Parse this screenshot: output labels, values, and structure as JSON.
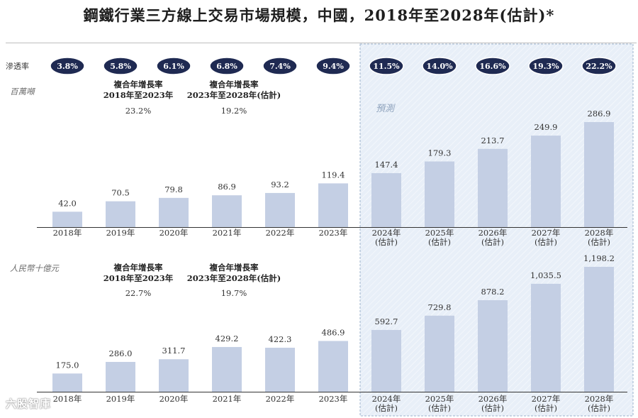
{
  "title": "鋼鐵行業三方線上交易市場規模，中國，2018年至2028年(估計)*",
  "penetration_label": "滲透率",
  "forecast_label": "預測",
  "watermark": "六股智庫",
  "colors": {
    "bar": "#c4cfe4",
    "badge": "#1f2a52",
    "forecast_bg": "#e8eff8",
    "forecast_border": "#9db3cc",
    "axis": "#333333"
  },
  "chart_data": [
    {
      "type": "bar",
      "name": "volume",
      "unit_label": "百萬噸",
      "categories": [
        "2018年",
        "2019年",
        "2020年",
        "2021年",
        "2022年",
        "2023年",
        "2024年\n(估計)",
        "2025年\n(估計)",
        "2026年\n(估計)",
        "2027年\n(估計)",
        "2028年\n(估計)"
      ],
      "values": [
        42.0,
        70.5,
        79.8,
        86.9,
        93.2,
        119.4,
        147.4,
        179.3,
        213.7,
        249.9,
        286.9
      ],
      "value_labels": [
        "42.0",
        "70.5",
        "79.8",
        "86.9",
        "93.2",
        "119.4",
        "147.4",
        "179.3",
        "213.7",
        "249.9",
        "286.9"
      ],
      "penetration": [
        "3.8%",
        "5.8%",
        "6.1%",
        "6.8%",
        "7.4%",
        "9.4%",
        "11.5%",
        "14.0%",
        "16.6%",
        "19.3%",
        "22.2%"
      ],
      "forecast_start_index": 6,
      "ylim": [
        0,
        286.9
      ],
      "cagr": [
        {
          "label": "複合年增長率",
          "period": "2018年至2023年",
          "value": "23.2%"
        },
        {
          "label": "複合年增長率",
          "period": "2023年至2028年(估計)",
          "value": "19.2%"
        }
      ]
    },
    {
      "type": "bar",
      "name": "value",
      "unit_label": "人民幣十億元",
      "categories": [
        "2018年",
        "2019年",
        "2020年",
        "2021年",
        "2022年",
        "2023年",
        "2024年\n(估計)",
        "2025年\n(估計)",
        "2026年\n(估計)",
        "2027年\n(估計)",
        "2028年\n(估計)"
      ],
      "values": [
        175.0,
        286.0,
        311.7,
        429.2,
        422.3,
        486.9,
        592.7,
        729.8,
        878.2,
        1035.5,
        1198.2
      ],
      "value_labels": [
        "175.0",
        "286.0",
        "311.7",
        "429.2",
        "422.3",
        "486.9",
        "592.7",
        "729.8",
        "878.2",
        "1,035.5",
        "1,198.2"
      ],
      "forecast_start_index": 6,
      "ylim": [
        0,
        1198.2
      ],
      "cagr": [
        {
          "label": "複合年增長率",
          "period": "2018年至2023年",
          "value": "22.7%"
        },
        {
          "label": "複合年增長率",
          "period": "2023年至2028年(估計)",
          "value": "19.7%"
        }
      ]
    }
  ]
}
